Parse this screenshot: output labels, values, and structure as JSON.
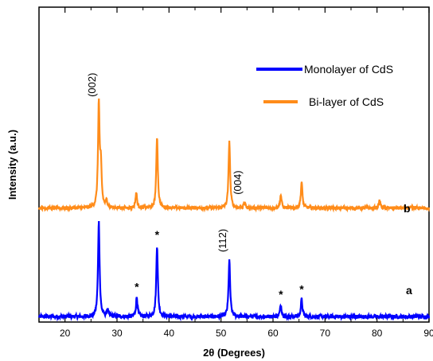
{
  "chart_data": {
    "type": "line",
    "title": "",
    "xlabel": "2θ (Degrees)",
    "ylabel": "Intensity (a.u.)",
    "xlim": [
      15,
      90
    ],
    "x_ticks": [
      20,
      30,
      40,
      50,
      60,
      70,
      80,
      90
    ],
    "y_ticks_labeled": false,
    "grid": false,
    "legend_position": "top-right",
    "series": [
      {
        "name": "Monolayer of CdS",
        "color": "#0000ff",
        "label": "a",
        "baseline": 0.05,
        "noise": 0.018,
        "peaks": [
          {
            "x": 26.5,
            "height": 0.88,
            "label": "",
            "marker": ""
          },
          {
            "x": 28.2,
            "height": 0.06,
            "label": "",
            "marker": ""
          },
          {
            "x": 33.8,
            "height": 0.18,
            "label": "",
            "marker": "*"
          },
          {
            "x": 37.7,
            "height": 0.66,
            "label": "",
            "marker": "*"
          },
          {
            "x": 51.6,
            "height": 0.52,
            "label": "(112)",
            "marker": ""
          },
          {
            "x": 61.5,
            "height": 0.11,
            "label": "",
            "marker": "*"
          },
          {
            "x": 65.5,
            "height": 0.16,
            "label": "",
            "marker": "*"
          }
        ]
      },
      {
        "name": "Bi-layer of CdS",
        "color": "#ff8c1a",
        "label": "b",
        "baseline": 1.05,
        "noise": 0.015,
        "peaks": [
          {
            "x": 26.5,
            "height": 0.95,
            "label": "(002)",
            "marker": ""
          },
          {
            "x": 26.9,
            "height": 0.35,
            "label": "",
            "marker": ""
          },
          {
            "x": 28.0,
            "height": 0.06,
            "label": "",
            "marker": ""
          },
          {
            "x": 33.7,
            "height": 0.14,
            "label": "",
            "marker": ""
          },
          {
            "x": 37.7,
            "height": 0.66,
            "label": "",
            "marker": ""
          },
          {
            "x": 51.6,
            "height": 0.62,
            "label": "",
            "marker": ""
          },
          {
            "x": 54.5,
            "height": 0.05,
            "label": "(004)",
            "marker": ""
          },
          {
            "x": 61.5,
            "height": 0.12,
            "label": "",
            "marker": ""
          },
          {
            "x": 65.5,
            "height": 0.24,
            "label": "",
            "marker": ""
          },
          {
            "x": 80.5,
            "height": 0.07,
            "label": "",
            "marker": ""
          }
        ]
      }
    ],
    "ylim": [
      0,
      2.9
    ]
  }
}
